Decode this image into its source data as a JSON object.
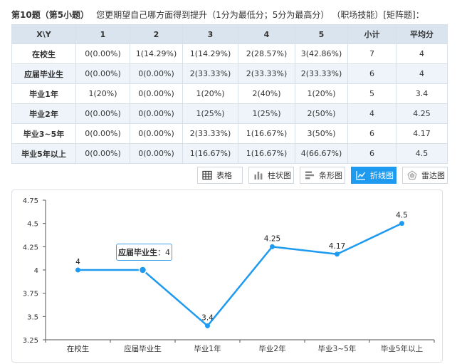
{
  "question": {
    "number": "第10题（第5小题）",
    "text": "您更期望自己哪方面得到提升（1分为最低分；5分为最高分）",
    "tag": "（职场技能）[矩阵题]："
  },
  "table": {
    "headers": [
      "X\\Y",
      "1",
      "2",
      "3",
      "4",
      "5",
      "小计",
      "平均分"
    ],
    "rows": [
      {
        "label": "在校生",
        "cells": [
          "0(0.00%)",
          "1(14.29%)",
          "1(14.29%)",
          "2(28.57%)",
          "3(42.86%)"
        ],
        "subtotal": "7",
        "avg": "4"
      },
      {
        "label": "应届毕业生",
        "cells": [
          "0(0.00%)",
          "0(0.00%)",
          "2(33.33%)",
          "2(33.33%)",
          "2(33.33%)"
        ],
        "subtotal": "6",
        "avg": "4"
      },
      {
        "label": "毕业1年",
        "cells": [
          "1(20%)",
          "0(0.00%)",
          "1(20%)",
          "2(40%)",
          "1(20%)"
        ],
        "subtotal": "5",
        "avg": "3.4"
      },
      {
        "label": "毕业2年",
        "cells": [
          "0(0.00%)",
          "0(0.00%)",
          "1(25%)",
          "1(25%)",
          "2(50%)"
        ],
        "subtotal": "4",
        "avg": "4.25"
      },
      {
        "label": "毕业3~5年",
        "cells": [
          "0(0.00%)",
          "0(0.00%)",
          "2(33.33%)",
          "1(16.67%)",
          "3(50%)"
        ],
        "subtotal": "6",
        "avg": "4.17"
      },
      {
        "label": "毕业5年以上",
        "cells": [
          "0(0.00%)",
          "0(0.00%)",
          "1(16.67%)",
          "1(16.67%)",
          "4(66.67%)"
        ],
        "subtotal": "6",
        "avg": "4.5"
      }
    ]
  },
  "view_buttons": [
    {
      "label": "表格",
      "icon": "table-icon",
      "active": true
    },
    {
      "label": "柱状图",
      "icon": "bar-chart-icon",
      "active": false
    },
    {
      "label": "条形图",
      "icon": "horizontal-bar-icon",
      "active": false
    },
    {
      "label": "折线图",
      "icon": "line-chart-icon",
      "active": true
    },
    {
      "label": "雷达图",
      "icon": "radar-chart-icon",
      "active": false
    }
  ],
  "colors": {
    "accent": "#1e9af0",
    "line": "#1e9af0",
    "header_bg": "#d9e4ee",
    "stripe": "#eef4fa"
  },
  "chart_data": {
    "type": "line",
    "title": "",
    "xlabel": "",
    "ylabel": "",
    "categories": [
      "在校生",
      "应届毕业生",
      "毕业1年",
      "毕业2年",
      "毕业3~5年",
      "毕业5年以上"
    ],
    "values": [
      4,
      4,
      3.4,
      4.25,
      4.17,
      4.5
    ],
    "data_labels": [
      "4",
      "",
      "3.4",
      "4.25",
      "4.17",
      "4.5"
    ],
    "ylim": [
      3.25,
      4.75
    ],
    "yticks": [
      "4.75",
      "4.5",
      "4.25",
      "4",
      "3.75",
      "3.5",
      "3.25"
    ],
    "grid": false,
    "legend": "none",
    "tooltip": {
      "name": "应届毕业生",
      "sep": "：",
      "value": "4"
    }
  }
}
